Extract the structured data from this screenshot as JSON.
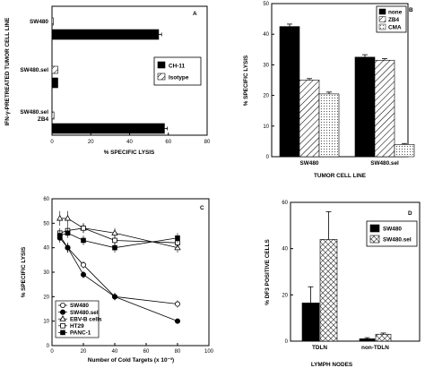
{
  "chart_data": [
    {
      "panel": "A",
      "type": "bar",
      "orientation": "horizontal",
      "ylabel": "IFN-γ-PRETREATED TUMOR CELL LINE",
      "xlabel": "% SPECIFIC LYSIS",
      "xlim": [
        0,
        80
      ],
      "xticks": [
        "0",
        "20",
        "40",
        "60",
        "80"
      ],
      "categories": [
        "SW480",
        "SW480.sel",
        "SW480.sel ZB4"
      ],
      "category_lines": [
        [
          "SW480"
        ],
        [
          "SW480.sel"
        ],
        [
          "SW480.sel",
          "ZB4"
        ]
      ],
      "series": [
        {
          "name": "CH-11",
          "color": "#000000",
          "values": [
            55,
            3,
            58
          ],
          "errors": [
            1,
            0,
            1
          ]
        },
        {
          "name": "Isotype",
          "color": "hatch",
          "values": [
            0.5,
            3,
            1
          ],
          "errors": [
            0,
            0,
            0
          ]
        }
      ],
      "legend_position": "right"
    },
    {
      "panel": "B",
      "type": "bar",
      "xlabel": "TUMOR CELL LINE",
      "ylabel": "% SPECIFIC LYSIS",
      "ylim": [
        0,
        50
      ],
      "yticks": [
        "0",
        "10",
        "20",
        "30",
        "40",
        "50"
      ],
      "categories": [
        "SW480",
        "SW480.sel"
      ],
      "series": [
        {
          "name": "none",
          "color": "#000000",
          "values": [
            42.5,
            32.5
          ],
          "errors": [
            0.8,
            0.8
          ]
        },
        {
          "name": "ZB4",
          "color": "hatch",
          "values": [
            25,
            31.5
          ],
          "errors": [
            0.5,
            0.5
          ]
        },
        {
          "name": "CMA",
          "color": "dotted",
          "values": [
            20.5,
            4
          ],
          "errors": [
            0.6,
            0.3
          ]
        }
      ],
      "legend_position": "top-right"
    },
    {
      "panel": "C",
      "type": "line",
      "xlabel": "Number of Cold Targets (x 10⁻³)",
      "ylabel": "% SPECIFIC LYSIS",
      "xlim": [
        0,
        100
      ],
      "ylim": [
        0,
        60
      ],
      "xticks": [
        "0",
        "20",
        "40",
        "60",
        "80",
        "100"
      ],
      "yticks": [
        "0",
        "10",
        "20",
        "30",
        "40",
        "50",
        "60"
      ],
      "series": [
        {
          "name": "SW480",
          "marker": "open-circle",
          "x": [
            5,
            10,
            20,
            40,
            80
          ],
          "y": [
            45,
            40,
            33,
            20,
            17
          ],
          "errors": [
            2,
            2,
            1.5,
            1.5,
            1.5
          ]
        },
        {
          "name": "SW480.sel",
          "marker": "filled-circle",
          "x": [
            5,
            10,
            20,
            40,
            80
          ],
          "y": [
            44,
            40,
            29,
            20,
            10
          ],
          "errors": [
            2,
            2,
            1.5,
            1.5,
            1
          ]
        },
        {
          "name": "EBV-B cells",
          "marker": "open-triangle",
          "x": [
            5,
            10,
            20,
            40,
            80
          ],
          "y": [
            52,
            52,
            48,
            46,
            40
          ],
          "errors": [
            3,
            3,
            2,
            2,
            2
          ]
        },
        {
          "name": "HT29",
          "marker": "open-square",
          "x": [
            5,
            10,
            20,
            40,
            80
          ],
          "y": [
            46,
            47,
            48,
            43,
            42
          ],
          "errors": [
            2,
            2,
            2,
            2,
            2
          ]
        },
        {
          "name": "PANC-1",
          "marker": "filled-square",
          "x": [
            5,
            10,
            20,
            40,
            80
          ],
          "y": [
            45,
            46,
            43,
            40,
            44
          ],
          "errors": [
            2,
            2,
            2,
            2,
            2
          ]
        }
      ],
      "legend_position": "bottom-left"
    },
    {
      "panel": "D",
      "type": "bar",
      "xlabel": "LYMPH NODES",
      "ylabel": "% DF3 POSITIVE CELLS",
      "ylim": [
        0,
        60
      ],
      "yticks": [
        "0",
        "20",
        "40",
        "60"
      ],
      "categories": [
        "TDLN",
        "non-TDLN"
      ],
      "series": [
        {
          "name": "SW480",
          "color": "#000000",
          "values": [
            16.5,
            1
          ],
          "errors": [
            7,
            0.5
          ]
        },
        {
          "name": "SW480.sel",
          "color": "diamond-hatch",
          "values": [
            44,
            3
          ],
          "errors": [
            12,
            0.5
          ]
        }
      ],
      "legend_position": "top-right"
    }
  ]
}
